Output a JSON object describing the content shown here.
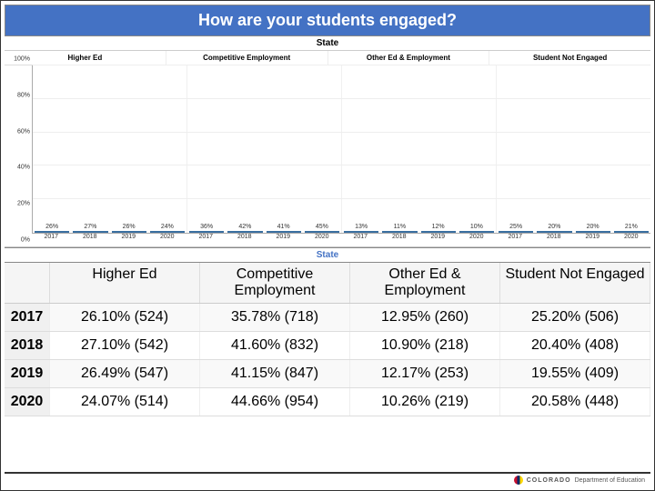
{
  "title": "How are your students engaged?",
  "state_label": "State",
  "categories": [
    "Higher Ed",
    "Competitive Employment",
    "Other Ed & Employment",
    "Student Not Engaged"
  ],
  "years": [
    "2017",
    "2018",
    "2019",
    "2020"
  ],
  "chart": {
    "type": "bar",
    "bar_color": "#4a8bc5",
    "bar_border": "#3a6fa0",
    "background_color": "#ffffff",
    "grid_color": "#eeeeee",
    "ylim": [
      0,
      100
    ],
    "ytick_step": 20,
    "y_ticks": [
      "0%",
      "20%",
      "40%",
      "60%",
      "80%",
      "100%"
    ],
    "label_fontsize": 7,
    "groups": [
      {
        "bars": [
          {
            "year": "2017",
            "value": 26,
            "label": "26%"
          },
          {
            "year": "2018",
            "value": 27,
            "label": "27%"
          },
          {
            "year": "2019",
            "value": 26,
            "label": "26%"
          },
          {
            "year": "2020",
            "value": 24,
            "label": "24%"
          }
        ]
      },
      {
        "bars": [
          {
            "year": "2017",
            "value": 36,
            "label": "36%"
          },
          {
            "year": "2018",
            "value": 42,
            "label": "42%"
          },
          {
            "year": "2019",
            "value": 41,
            "label": "41%"
          },
          {
            "year": "2020",
            "value": 45,
            "label": "45%"
          }
        ]
      },
      {
        "bars": [
          {
            "year": "2017",
            "value": 13,
            "label": "13%"
          },
          {
            "year": "2018",
            "value": 11,
            "label": "11%"
          },
          {
            "year": "2019",
            "value": 12,
            "label": "12%"
          },
          {
            "year": "2020",
            "value": 10,
            "label": "10%"
          }
        ]
      },
      {
        "bars": [
          {
            "year": "2017",
            "value": 25,
            "label": "25%"
          },
          {
            "year": "2018",
            "value": 20,
            "label": "20%"
          },
          {
            "year": "2019",
            "value": 20,
            "label": "20%"
          },
          {
            "year": "2020",
            "value": 21,
            "label": "21%"
          }
        ]
      }
    ]
  },
  "table": {
    "headers": [
      "",
      "Higher Ed",
      "Competitive Employment",
      "Other Ed & Employment",
      "Student Not Engaged"
    ],
    "rows": [
      {
        "year": "2017",
        "cells": [
          "26.10% (524)",
          "35.78% (718)",
          "12.95% (260)",
          "25.20% (506)"
        ]
      },
      {
        "year": "2018",
        "cells": [
          "27.10% (542)",
          "41.60% (832)",
          "10.90% (218)",
          "20.40% (408)"
        ]
      },
      {
        "year": "2019",
        "cells": [
          "26.49% (547)",
          "41.15% (847)",
          "12.17% (253)",
          "19.55% (409)"
        ]
      },
      {
        "year": "2020",
        "cells": [
          "24.07% (514)",
          "44.66% (954)",
          "10.26% (219)",
          "20.58% (448)"
        ]
      }
    ]
  },
  "footer": {
    "org": "COLORADO",
    "dept": "Department of Education",
    "logo_colors": [
      "#c8102e",
      "#002868",
      "#ffd700"
    ]
  },
  "colors": {
    "header_bg": "#4472c4",
    "header_text": "#ffffff"
  }
}
